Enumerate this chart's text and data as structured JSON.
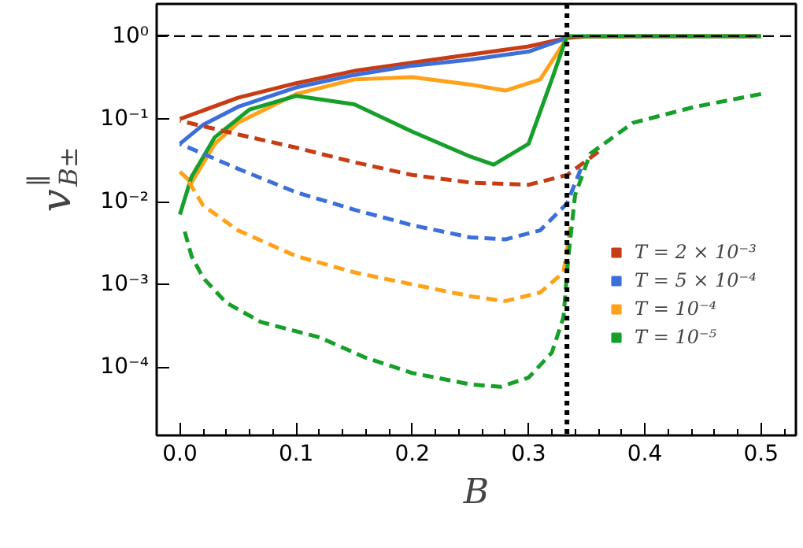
{
  "chart_data": {
    "type": "line",
    "xlabel": "B",
    "ylabel": "v$_{B±}$$^{∥}$",
    "log": "y",
    "grid": false,
    "legend": "right",
    "line_style": "solid",
    "xlim": [
      -0.02,
      0.53
    ],
    "xticks": [
      {
        "value": 0,
        "label": "0.0"
      },
      0.1,
      0.2,
      0.3,
      0.4,
      0.5
    ],
    "ylim": [
      1.5e-05,
      2.45
    ],
    "yticks": [
      {
        "value": 1,
        "label": "10⁰"
      },
      {
        "value": 0.1,
        "label": "10⁻¹"
      },
      {
        "value": 0.01,
        "label": "10⁻²"
      },
      {
        "value": 0.001,
        "label": "10⁻³"
      },
      {
        "value": 0.0001,
        "label": "10⁻⁴"
      }
    ],
    "ref_lines": [
      {
        "axis": "y",
        "value": 1,
        "color": "#000000",
        "line_style": "dashed"
      },
      {
        "axis": "x",
        "value": 0.333,
        "color": "#000000",
        "line_style": "dotted"
      }
    ],
    "series": [
      {
        "name": "T = 2 × 10⁻³",
        "color": "#c83c14",
        "x": [
          0,
          0.05,
          0.1,
          0.15,
          0.2,
          0.25,
          0.3,
          0.333,
          0.35,
          0.4,
          0.5
        ],
        "values": [
          0.1,
          0.18,
          0.27,
          0.38,
          0.48,
          0.6,
          0.75,
          0.95,
          0.99,
          1,
          1
        ]
      },
      {
        "name": "T = 5 × 10⁻⁴",
        "color": "#3d6fdb",
        "x": [
          0,
          0.02,
          0.05,
          0.1,
          0.15,
          0.2,
          0.25,
          0.3,
          0.333
        ],
        "values": [
          0.05,
          0.085,
          0.14,
          0.24,
          0.34,
          0.44,
          0.52,
          0.65,
          0.95
        ]
      },
      {
        "name": "T = 10⁻⁴",
        "color": "#ffa21a",
        "x": [
          0,
          0.01,
          0.03,
          0.05,
          0.1,
          0.15,
          0.2,
          0.25,
          0.28,
          0.31,
          0.333
        ],
        "values": [
          0.023,
          0.017,
          0.05,
          0.09,
          0.2,
          0.3,
          0.32,
          0.26,
          0.22,
          0.3,
          0.95
        ]
      },
      {
        "name": "T = 10⁻⁵",
        "color": "#16a02a",
        "x": [
          0,
          0.01,
          0.03,
          0.06,
          0.1,
          0.15,
          0.2,
          0.25,
          0.27,
          0.3,
          0.32,
          0.333,
          0.35,
          0.5
        ],
        "values": [
          0.007,
          0.02,
          0.06,
          0.13,
          0.19,
          0.15,
          0.07,
          0.035,
          0.028,
          0.05,
          0.3,
          1,
          1,
          1
        ]
      },
      {
        "color": "#c83c14",
        "line_style": "dashed",
        "x": [
          0,
          0.05,
          0.1,
          0.15,
          0.2,
          0.25,
          0.3,
          0.333,
          0.36
        ],
        "values": [
          0.095,
          0.065,
          0.045,
          0.03,
          0.021,
          0.017,
          0.016,
          0.021,
          0.04
        ]
      },
      {
        "color": "#3d6fdb",
        "line_style": "dashed",
        "x": [
          0,
          0.05,
          0.1,
          0.15,
          0.2,
          0.25,
          0.28,
          0.31,
          0.333,
          0.345
        ],
        "values": [
          0.05,
          0.025,
          0.013,
          0.008,
          0.0052,
          0.0037,
          0.0035,
          0.0045,
          0.0095,
          0.025
        ]
      },
      {
        "color": "#ffa21a",
        "line_style": "dashed",
        "x": [
          0.005,
          0.02,
          0.05,
          0.1,
          0.15,
          0.2,
          0.25,
          0.28,
          0.31,
          0.33,
          0.336
        ],
        "values": [
          0.02,
          0.009,
          0.0045,
          0.0022,
          0.0014,
          0.001,
          0.00072,
          0.00063,
          0.0008,
          0.0014,
          0.005
        ]
      },
      {
        "color": "#16a02a",
        "line_style": "dashed",
        "x": [
          0.003,
          0.01,
          0.02,
          0.04,
          0.07,
          0.12,
          0.16,
          0.2,
          0.25,
          0.276,
          0.3,
          0.32,
          0.33,
          0.334,
          0.34,
          0.353,
          0.39,
          0.443,
          0.5
        ],
        "values": [
          0.005,
          0.0022,
          0.0012,
          0.0006,
          0.00035,
          0.00023,
          0.00013,
          8.5e-05,
          6.2e-05,
          5.8e-05,
          7.5e-05,
          0.00015,
          0.0004,
          0.002,
          0.012,
          0.038,
          0.09,
          0.14,
          0.2
        ]
      }
    ]
  }
}
